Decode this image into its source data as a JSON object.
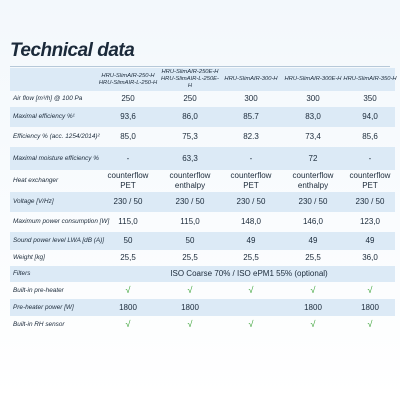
{
  "title": "Technical data",
  "table": {
    "header": [
      [
        "HRU-SlimAIR-250-H",
        "HRU-SlimAIR-L-250-H"
      ],
      [
        "HRU-SlimAIR-250E-H",
        "HRU-SlimAIR-L-250E-H"
      ],
      [
        "HRU-SlimAIR-300-H"
      ],
      [
        "HRU-SlimAIR-300E-H"
      ],
      [
        "HRU-SlimAIR-350-H"
      ]
    ],
    "rows": [
      {
        "label": "Air flow [m³/h] @ 100 Pa",
        "cells": [
          "250",
          "250",
          "300",
          "300",
          "350"
        ]
      },
      {
        "label": "Maximal efficiency %¹",
        "cells": [
          "93,6",
          "86,0",
          "85.7",
          "83,0",
          "94,0"
        ]
      },
      {
        "label": "Efficiency % (acc. 1254/2014)²",
        "cells": [
          "85,0",
          "75,3",
          "82.3",
          "73,4",
          "85,6"
        ]
      },
      {
        "label": "Maximal moisture efficiency %",
        "cells": [
          "-",
          "63,3",
          "-",
          "72",
          "-"
        ]
      },
      {
        "label": "Heat exchanger",
        "cells": [
          "counterflow PET",
          "counterflow enthalpy",
          "counterflow PET",
          "counterflow enthalpy",
          "counterflow PET"
        ]
      },
      {
        "label": "Voltage [V/Hz]",
        "cells": [
          "230 / 50",
          "230 / 50",
          "230 / 50",
          "230 / 50",
          "230 / 50"
        ]
      },
      {
        "label": "Maximum power consumption [W]",
        "cells": [
          "115,0",
          "115,0",
          "148,0",
          "146,0",
          "123,0"
        ]
      },
      {
        "label": "Sound power level LWA [dB (A)]",
        "cells": [
          "50",
          "50",
          "49",
          "49",
          "49"
        ]
      },
      {
        "label": "Weight [kg]",
        "cells": [
          "25,5",
          "25,5",
          "25,5",
          "25,5",
          "36,0"
        ]
      },
      {
        "label": "Filters",
        "cells": [
          "ISO Coarse 70% / ISO ePM1 55% (optional)"
        ]
      },
      {
        "label": "Built-in pre-heater",
        "cells": [
          "√",
          "√",
          "√",
          "√",
          "√"
        ]
      },
      {
        "label": "Pre-heater power [W]",
        "cells": [
          "1800",
          "1800",
          null,
          "1800",
          "1800"
        ]
      },
      {
        "label": "Built-in RH sensor",
        "cells": [
          "√",
          "√",
          "√",
          "√",
          "√"
        ]
      }
    ]
  }
}
